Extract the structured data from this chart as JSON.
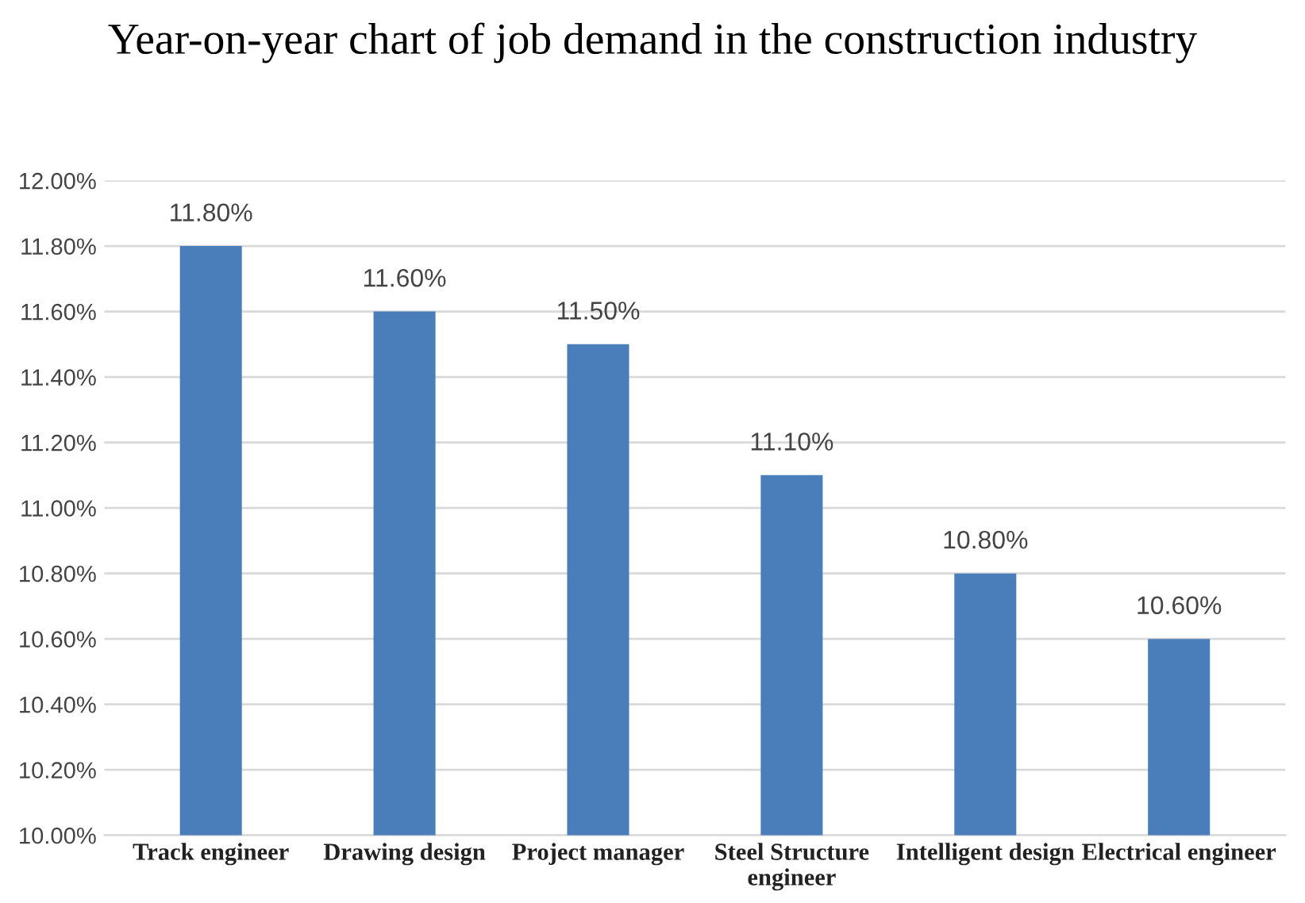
{
  "chart_data": {
    "type": "bar",
    "title": "Year-on-year chart of job demand in the construction industry",
    "categories": [
      "Track engineer",
      "Drawing design",
      "Project manager",
      "Steel Structure\nengineer",
      "Intelligent design",
      "Electrical engineer"
    ],
    "values": [
      11.8,
      11.6,
      11.5,
      11.1,
      10.8,
      10.6
    ],
    "value_labels": [
      "11.80%",
      "11.60%",
      "11.50%",
      "11.10%",
      "10.80%",
      "10.60%"
    ],
    "color": "#4a7ebb",
    "ylim": [
      10.0,
      12.0
    ],
    "yticks": [
      {
        "value": 10.0,
        "label": "10.00%"
      },
      {
        "value": 10.2,
        "label": "10.20%"
      },
      {
        "value": 10.4,
        "label": "10.40%"
      },
      {
        "value": 10.6,
        "label": "10.60%"
      },
      {
        "value": 10.8,
        "label": "10.80%"
      },
      {
        "value": 11.0,
        "label": "11.00%"
      },
      {
        "value": 11.2,
        "label": "11.20%"
      },
      {
        "value": 11.4,
        "label": "11.40%"
      },
      {
        "value": 11.6,
        "label": "11.60%"
      },
      {
        "value": 11.8,
        "label": "11.80%"
      },
      {
        "value": 12.0,
        "label": "12.00%"
      }
    ],
    "grid": "y",
    "legend": false
  }
}
